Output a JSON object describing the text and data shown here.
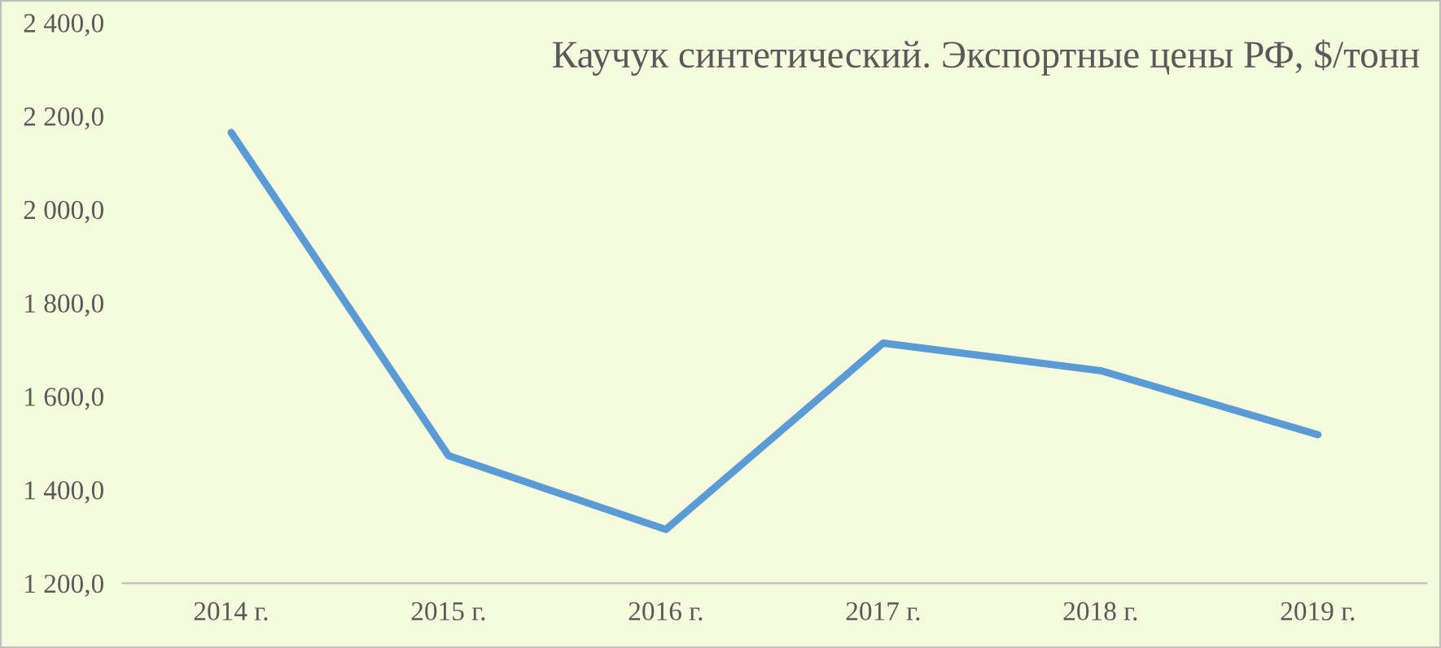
{
  "chart_data": {
    "type": "line",
    "title": "Каучук синтетический. Экспортные цены РФ, $/тонн",
    "categories": [
      "2014 г.",
      "2015 г.",
      "2016 г.",
      "2017 г.",
      "2018 г.",
      "2019 г."
    ],
    "series": [
      {
        "color": "#5b9bd5",
        "values": [
          2165,
          1473,
          1315,
          1714,
          1655,
          1518
        ]
      }
    ],
    "ylim": [
      1200,
      2400
    ],
    "yticks": [
      {
        "value": 1200,
        "label": "1 200,0"
      },
      {
        "value": 1400,
        "label": "1 400,0"
      },
      {
        "value": 1600,
        "label": "1 600,0"
      },
      {
        "value": 1800,
        "label": "1 800,0"
      },
      {
        "value": 2000,
        "label": "2 000,0"
      },
      {
        "value": 2200,
        "label": "2 200,0"
      },
      {
        "value": 2400,
        "label": "2 400,0"
      }
    ],
    "grid": false,
    "marker": "none",
    "line_style": "solid"
  }
}
